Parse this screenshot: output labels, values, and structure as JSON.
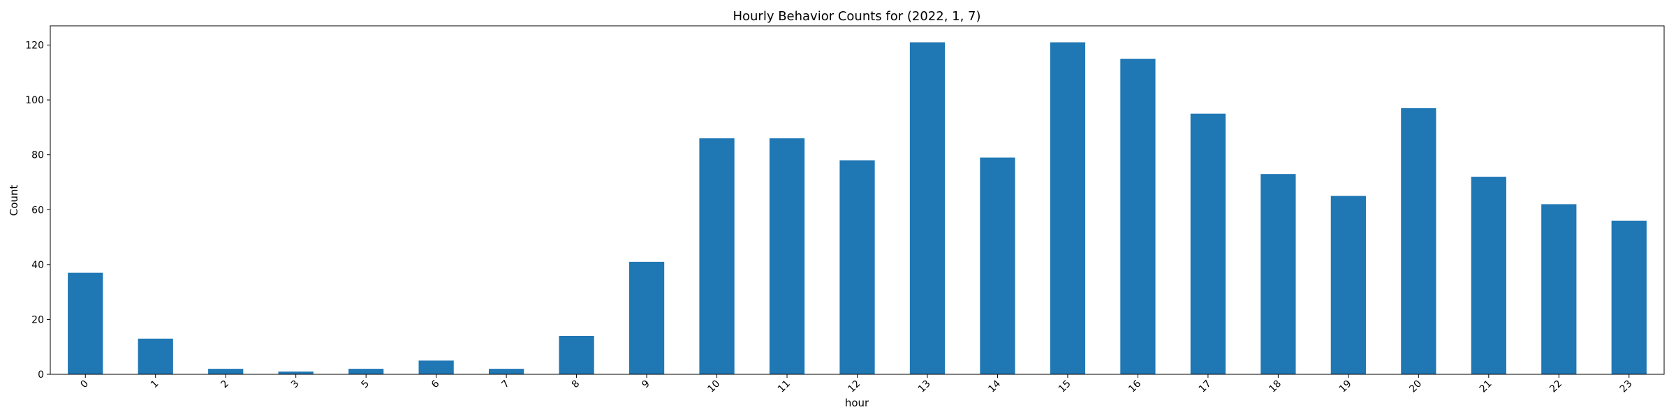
{
  "chart_data": {
    "type": "bar",
    "title": "Hourly Behavior Counts for (2022, 1, 7)",
    "xlabel": "hour",
    "ylabel": "Count",
    "categories": [
      "0",
      "1",
      "2",
      "3",
      "5",
      "6",
      "7",
      "8",
      "9",
      "10",
      "11",
      "12",
      "13",
      "14",
      "15",
      "16",
      "17",
      "18",
      "19",
      "20",
      "21",
      "22",
      "23"
    ],
    "values": [
      37,
      13,
      2,
      1,
      2,
      5,
      2,
      14,
      41,
      86,
      86,
      78,
      121,
      79,
      121,
      115,
      95,
      73,
      65,
      97,
      72,
      62,
      56
    ],
    "ylim": [
      0,
      127
    ],
    "yticks": [
      0,
      20,
      40,
      60,
      80,
      100,
      120
    ],
    "grid": false,
    "legend": "none",
    "bar_color": "#1f77b4"
  }
}
